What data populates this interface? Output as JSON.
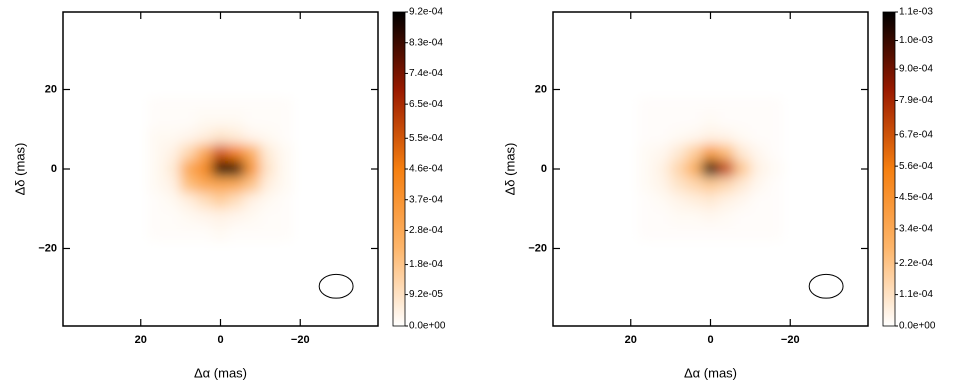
{
  "chart_data": [
    {
      "type": "heatmap",
      "xlabel": "Δα (mas)",
      "ylabel": "Δδ (mas)",
      "x": [
        16,
        12,
        8,
        4,
        0,
        -4,
        -8,
        -12,
        -16
      ],
      "y": [
        16,
        12,
        8,
        4,
        0,
        -4,
        -8,
        -12,
        -16
      ],
      "z": [
        [
          1e-05,
          1e-05,
          1e-05,
          1e-05,
          1e-05,
          1e-05,
          1e-05,
          1e-05,
          1e-05
        ],
        [
          1e-05,
          1e-05,
          1e-05,
          2e-05,
          2e-05,
          2e-05,
          1e-05,
          1e-05,
          1e-05
        ],
        [
          2e-05,
          2e-05,
          3e-05,
          5e-05,
          8e-05,
          6e-05,
          3e-05,
          2e-05,
          1e-05
        ],
        [
          2e-05,
          4e-05,
          0.00012,
          0.00028,
          0.00055,
          0.00045,
          0.00025,
          6e-05,
          2e-05
        ],
        [
          2e-05,
          6e-05,
          0.00028,
          0.0004,
          0.00092,
          0.00085,
          0.00035,
          8e-05,
          2e-05
        ],
        [
          2e-05,
          4e-05,
          0.0002,
          0.00028,
          0.0003,
          0.00028,
          0.00018,
          5e-05,
          2e-05
        ],
        [
          1e-05,
          2e-05,
          5e-05,
          0.0001,
          0.00015,
          0.0001,
          4e-05,
          2e-05,
          1e-05
        ],
        [
          1e-05,
          1e-05,
          2e-05,
          3e-05,
          4e-05,
          3e-05,
          2e-05,
          1e-05,
          1e-05
        ],
        [
          1e-05,
          1e-05,
          1e-05,
          1e-05,
          2e-05,
          1e-05,
          1e-05,
          1e-05,
          1e-05
        ]
      ],
      "xlim": [
        39.5,
        -39.5
      ],
      "ylim": [
        -39.5,
        39.5
      ],
      "xticks": [
        {
          "value": 20,
          "label": "20"
        },
        0,
        {
          "value": -20,
          "label": "−20"
        }
      ],
      "yticks": [
        {
          "value": -20,
          "label": "−20"
        },
        0,
        20
      ],
      "colors": [
        "#ffffff",
        "#fdb56a",
        "#f57f10",
        "#9a1a00",
        "#000000"
      ],
      "clim": [
        0,
        0.00092
      ],
      "cticks": [
        {
          "value": 0,
          "label": "0.0e+00"
        },
        {
          "value": 9.2e-05,
          "label": "9.2e-05"
        },
        {
          "value": 0.00018,
          "label": "1.8e-04"
        },
        {
          "value": 0.00028,
          "label": "2.8e-04"
        },
        {
          "value": 0.00037,
          "label": "3.7e-04"
        },
        {
          "value": 0.00046,
          "label": "4.6e-04"
        },
        {
          "value": 0.00055,
          "label": "5.5e-04"
        },
        {
          "value": 0.00065,
          "label": "6.5e-04"
        },
        {
          "value": 0.00074,
          "label": "7.4e-04"
        },
        {
          "value": 0.00083,
          "label": "8.3e-04"
        },
        {
          "value": 0.00092,
          "label": "9.2e-04"
        }
      ],
      "beam": {
        "x": -29,
        "y": -29.5,
        "width": 8.5,
        "height": 6
      }
    },
    {
      "type": "heatmap",
      "xlabel": "Δα (mas)",
      "ylabel": "Δδ (mas)",
      "x": [
        16,
        12,
        8,
        4,
        0,
        -4,
        -8,
        -12,
        -16
      ],
      "y": [
        16,
        12,
        8,
        4,
        0,
        -4,
        -8,
        -12,
        -16
      ],
      "z": [
        [
          1e-05,
          1e-05,
          1e-05,
          1e-05,
          1e-05,
          1e-05,
          1e-05,
          1e-05,
          1e-05
        ],
        [
          1e-05,
          1e-05,
          1e-05,
          1e-05,
          2e-05,
          1e-05,
          1e-05,
          1e-05,
          1e-05
        ],
        [
          1e-05,
          1e-05,
          2e-05,
          3e-05,
          5e-05,
          4e-05,
          2e-05,
          1e-05,
          1e-05
        ],
        [
          2e-05,
          3e-05,
          8e-05,
          0.00018,
          0.0004,
          0.00025,
          8e-05,
          3e-05,
          1e-05
        ],
        [
          2e-05,
          5e-05,
          0.00015,
          0.0003,
          0.0011,
          0.0007,
          0.0002,
          5e-05,
          2e-05
        ],
        [
          2e-05,
          4e-05,
          0.0001,
          0.00015,
          0.0002,
          0.00015,
          8e-05,
          3e-05,
          1e-05
        ],
        [
          1e-05,
          2e-05,
          4e-05,
          6e-05,
          8e-05,
          5e-05,
          3e-05,
          1e-05,
          1e-05
        ],
        [
          1e-05,
          1e-05,
          2e-05,
          2e-05,
          3e-05,
          2e-05,
          1e-05,
          1e-05,
          1e-05
        ],
        [
          1e-05,
          1e-05,
          1e-05,
          1e-05,
          1e-05,
          1e-05,
          1e-05,
          1e-05,
          1e-05
        ]
      ],
      "xlim": [
        39.5,
        -39.5
      ],
      "ylim": [
        -39.5,
        39.5
      ],
      "xticks": [
        {
          "value": 20,
          "label": "20"
        },
        0,
        {
          "value": -20,
          "label": "−20"
        }
      ],
      "yticks": [
        {
          "value": -20,
          "label": "−20"
        },
        0,
        20
      ],
      "colors": [
        "#ffffff",
        "#fdb56a",
        "#f57f10",
        "#9a1a00",
        "#000000"
      ],
      "clim": [
        0,
        0.0011
      ],
      "cticks": [
        {
          "value": 0,
          "label": "0.0e+00"
        },
        {
          "value": 0.00011,
          "label": "1.1e-04"
        },
        {
          "value": 0.00022,
          "label": "2.2e-04"
        },
        {
          "value": 0.00034,
          "label": "3.4e-04"
        },
        {
          "value": 0.00045,
          "label": "4.5e-04"
        },
        {
          "value": 0.00056,
          "label": "5.6e-04"
        },
        {
          "value": 0.00067,
          "label": "6.7e-04"
        },
        {
          "value": 0.00079,
          "label": "7.9e-04"
        },
        {
          "value": 0.0009,
          "label": "9.0e-04"
        },
        {
          "value": 0.001,
          "label": "1.0e-03"
        },
        {
          "value": 0.0011,
          "label": "1.1e-03"
        }
      ],
      "beam": {
        "x": -29,
        "y": -29.5,
        "width": 8.5,
        "height": 6
      }
    }
  ]
}
